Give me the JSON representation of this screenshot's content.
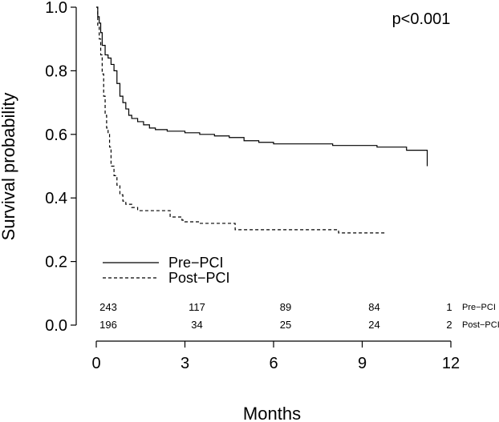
{
  "chart_data": {
    "type": "line",
    "xlabel": "Months",
    "ylabel": "Survival probability",
    "xlim": [
      0,
      12
    ],
    "ylim": [
      0,
      1.0
    ],
    "xticks": [
      "0",
      "3",
      "6",
      "9",
      "12"
    ],
    "yticks": [
      "0.0",
      "0.2",
      "0.4",
      "0.6",
      "0.8",
      "1.0"
    ],
    "annotation": "p<0.001",
    "grid": false,
    "legend_position": "bottom-left",
    "series": [
      {
        "name": "Pre−PCI",
        "style": "solid",
        "color": "#000000",
        "x": [
          0,
          0.05,
          0.1,
          0.15,
          0.2,
          0.3,
          0.4,
          0.5,
          0.6,
          0.7,
          0.8,
          0.9,
          1.0,
          1.1,
          1.2,
          1.4,
          1.6,
          1.8,
          2.0,
          2.4,
          2.8,
          3.0,
          3.5,
          4.0,
          4.5,
          5.0,
          5.5,
          6.0,
          7.0,
          8.0,
          9.0,
          9.5,
          10.5,
          11.2,
          11.2
        ],
        "y": [
          1.0,
          0.97,
          0.95,
          0.92,
          0.88,
          0.85,
          0.84,
          0.82,
          0.8,
          0.76,
          0.72,
          0.7,
          0.68,
          0.66,
          0.65,
          0.64,
          0.63,
          0.62,
          0.615,
          0.61,
          0.61,
          0.605,
          0.6,
          0.595,
          0.59,
          0.58,
          0.575,
          0.57,
          0.57,
          0.565,
          0.565,
          0.56,
          0.55,
          0.55,
          0.5
        ]
      },
      {
        "name": "Post−PCI",
        "style": "dashed",
        "color": "#000000",
        "x": [
          0,
          0.05,
          0.1,
          0.15,
          0.2,
          0.25,
          0.3,
          0.35,
          0.4,
          0.45,
          0.5,
          0.6,
          0.7,
          0.8,
          0.9,
          1.0,
          1.2,
          1.4,
          1.6,
          1.8,
          2.0,
          2.5,
          2.9,
          3.0,
          3.5,
          4.0,
          4.7,
          5.0,
          8.2,
          9.8
        ],
        "y": [
          1.0,
          0.94,
          0.9,
          0.85,
          0.79,
          0.72,
          0.66,
          0.62,
          0.6,
          0.56,
          0.5,
          0.47,
          0.44,
          0.41,
          0.39,
          0.38,
          0.37,
          0.36,
          0.36,
          0.36,
          0.36,
          0.34,
          0.33,
          0.325,
          0.32,
          0.32,
          0.3,
          0.3,
          0.29,
          0.29
        ]
      }
    ],
    "risk_table": {
      "times": [
        0,
        3,
        6,
        9
      ],
      "rows": [
        {
          "index": "1",
          "label": "Pre−PCI",
          "counts": [
            "243",
            "117",
            "89",
            "84"
          ]
        },
        {
          "index": "2",
          "label": "Post−PCI",
          "counts": [
            "196",
            "34",
            "25",
            "24"
          ]
        }
      ]
    }
  }
}
